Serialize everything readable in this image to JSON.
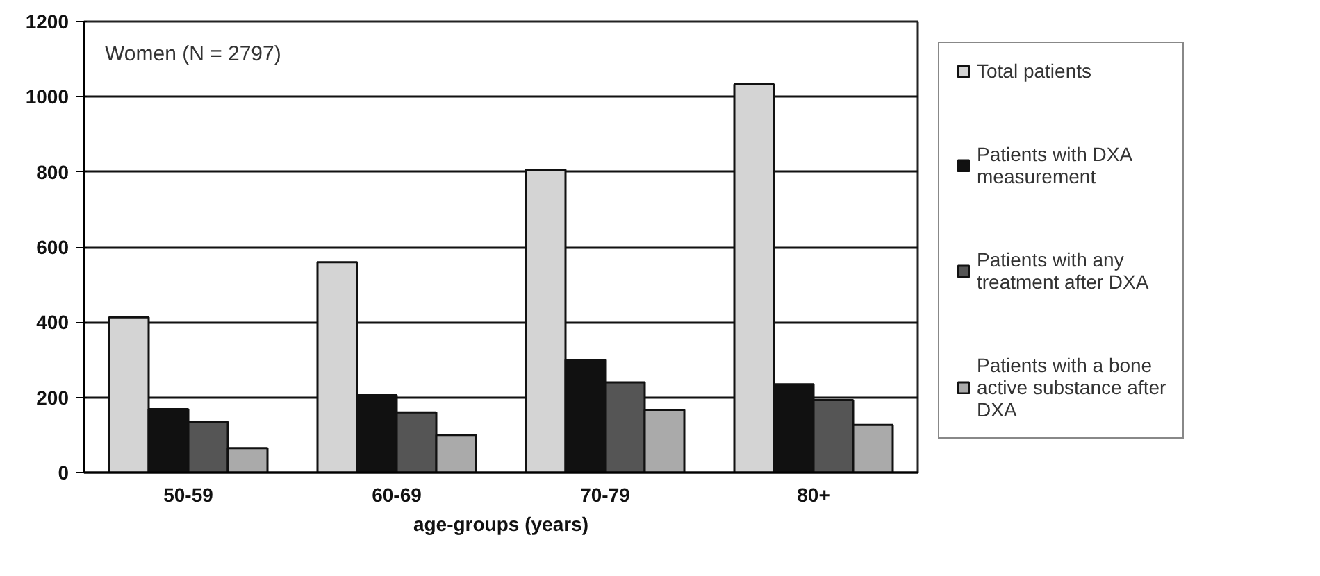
{
  "chart_data": {
    "type": "bar",
    "xlabel": "age-groups (years)",
    "categories": [
      "50-59",
      "60-69",
      "70-79",
      "80+"
    ],
    "series": [
      {
        "name": "Total patients",
        "color": "#d4d4d4",
        "values": [
          413,
          560,
          806,
          1033
        ]
      },
      {
        "name": "Patients with DXA measurement",
        "color": "#111111",
        "values": [
          169,
          206,
          300,
          235
        ]
      },
      {
        "name": "Patients with any treatment after DXA",
        "color": "#555555",
        "values": [
          135,
          160,
          240,
          193
        ]
      },
      {
        "name": "Patients with a bone active substance after DXA",
        "color": "#aaaaaa",
        "values": [
          65,
          100,
          167,
          127
        ]
      }
    ],
    "ylim": [
      0,
      1200
    ],
    "yticks": [
      0,
      200,
      400,
      600,
      800,
      1000,
      1200
    ],
    "grid": "y",
    "legend": "right",
    "annotations": [
      "Women (N = 2797)"
    ]
  }
}
